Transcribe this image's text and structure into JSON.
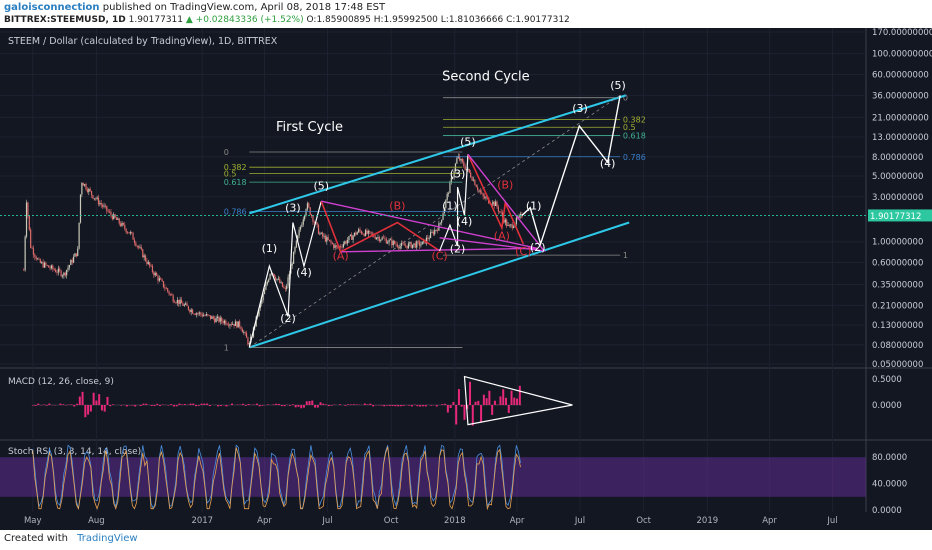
{
  "header": {
    "username": "galoisconnection",
    "published_text": "published on TradingView.com, April 08, 2018 17:48 EST",
    "symbol": "BITTREX:STEEMUSD, 1D",
    "last_price": "1.90177311",
    "change_text": "▲ +0.02843336 (+1.52%)",
    "ohlc_text": "O:1.85900895 H:1.95992500 L:1.81036666 C:1.90177312"
  },
  "chart_data": [
    {
      "type": "candlestick",
      "title": "STEEM / Dollar (calculated by TradingView), 1D, BITTREX",
      "y_scale": "log",
      "ylim": [
        0.05,
        170
      ],
      "x_ticks": [
        "May",
        "Aug",
        "2017",
        "Apr",
        "Jul",
        "Oct",
        "2018",
        "Apr",
        "Jul",
        "Oct",
        "2019",
        "Apr",
        "Jul"
      ],
      "y_ticks": [
        "170.00000000",
        "100.00000000",
        "60.00000000",
        "36.00000000",
        "21.00000000",
        "13.00000000",
        "8.00000000",
        "5.00000000",
        "3.00000000",
        "1.90177312",
        "1.00000000",
        "0.60000000",
        "0.35000000",
        "0.21000000",
        "0.13000000",
        "0.08000000",
        "0.05000000"
      ],
      "current_price_label": "1.90177312",
      "price_path": [
        [
          "2016-04-18",
          0.5
        ],
        [
          "2016-04-22",
          2.8
        ],
        [
          "2016-04-28",
          0.9
        ],
        [
          "2016-05-10",
          0.6
        ],
        [
          "2016-06-15",
          0.45
        ],
        [
          "2016-07-05",
          0.8
        ],
        [
          "2016-07-10",
          4.5
        ],
        [
          "2016-07-25",
          3.2
        ],
        [
          "2016-08-20",
          2.0
        ],
        [
          "2016-09-20",
          1.2
        ],
        [
          "2016-10-20",
          0.5
        ],
        [
          "2016-11-20",
          0.25
        ],
        [
          "2016-12-20",
          0.18
        ],
        [
          "2017-01-20",
          0.15
        ],
        [
          "2017-02-25",
          0.13
        ],
        [
          "2017-03-10",
          0.08
        ],
        [
          "2017-03-20",
          0.15
        ],
        [
          "2017-04-10",
          0.5
        ],
        [
          "2017-05-01",
          0.3
        ],
        [
          "2017-05-20",
          1.2
        ],
        [
          "2017-06-01",
          2.5
        ],
        [
          "2017-06-20",
          1.2
        ],
        [
          "2017-07-15",
          0.85
        ],
        [
          "2017-08-15",
          1.3
        ],
        [
          "2017-09-15",
          1.1
        ],
        [
          "2017-10-15",
          0.9
        ],
        [
          "2017-11-15",
          0.95
        ],
        [
          "2017-12-10",
          1.5
        ],
        [
          "2017-12-25",
          4.0
        ],
        [
          "2018-01-05",
          8.0
        ],
        [
          "2018-01-25",
          5.0
        ],
        [
          "2018-02-10",
          3.0
        ],
        [
          "2018-03-01",
          2.5
        ],
        [
          "2018-03-20",
          1.4
        ],
        [
          "2018-04-08",
          1.9
        ]
      ],
      "annotations": {
        "labels": [
          {
            "text": "First Cycle",
            "x": "2017-06-05",
            "y": 15
          },
          {
            "text": "Second Cycle",
            "x": "2018-02-15",
            "y": 52
          },
          {
            "text": "(1)",
            "x": "2017-04-08",
            "y": 0.78
          },
          {
            "text": "(2)",
            "x": "2017-05-05",
            "y": 0.14
          },
          {
            "text": "(3)",
            "x": "2017-05-12",
            "y": 2.1
          },
          {
            "text": "(4)",
            "x": "2017-05-28",
            "y": 0.43
          },
          {
            "text": "(5)",
            "x": "2017-06-22",
            "y": 3.6
          },
          {
            "text": "(A)",
            "x": "2017-07-20",
            "y": 0.65
          },
          {
            "text": "(B)",
            "x": "2017-10-10",
            "y": 2.2
          },
          {
            "text": "(C)",
            "x": "2017-12-10",
            "y": 0.65
          },
          {
            "text": "(1)",
            "x": "2017-12-25",
            "y": 2.2
          },
          {
            "text": "(2)",
            "x": "2018-01-05",
            "y": 0.77
          },
          {
            "text": "(3)",
            "x": "2018-01-05",
            "y": 4.8
          },
          {
            "text": "(4)",
            "x": "2018-01-15",
            "y": 1.5
          },
          {
            "text": "(5)",
            "x": "2018-01-20",
            "y": 10.5
          },
          {
            "text": "(A)",
            "x": "2018-03-10",
            "y": 1.05
          },
          {
            "text": "(B)",
            "x": "2018-03-15",
            "y": 3.7
          },
          {
            "text": "(C)",
            "x": "2018-04-10",
            "y": 0.72
          },
          {
            "text": "(1)",
            "x": "2018-04-25",
            "y": 2.2
          },
          {
            "text": "(2)",
            "x": "2018-05-01",
            "y": 0.8
          },
          {
            "text": "(3)",
            "x": "2018-07-01",
            "y": 24
          },
          {
            "text": "(4)",
            "x": "2018-08-10",
            "y": 6.2
          },
          {
            "text": "(5)",
            "x": "2018-08-25",
            "y": 42
          }
        ],
        "fib_levels_1": [
          {
            "label": "0",
            "price": 9
          },
          {
            "label": "0.382",
            "price": 6.2
          },
          {
            "label": "0.5",
            "price": 5.3
          },
          {
            "label": "0.618",
            "price": 4.3
          },
          {
            "label": "0.786",
            "price": 2.1
          },
          {
            "label": "1",
            "price": 0.075
          }
        ],
        "fib_levels_2": [
          {
            "label": "0",
            "price": 34
          },
          {
            "label": "0.382",
            "price": 20
          },
          {
            "label": "0.5",
            "price": 16.5
          },
          {
            "label": "0.618",
            "price": 13.5
          },
          {
            "label": "0.786",
            "price": 8
          },
          {
            "label": "1",
            "price": 0.72
          }
        ],
        "projected_path": [
          [
            "2018-04-08",
            1.9
          ],
          [
            "2018-04-20",
            2.3
          ],
          [
            "2018-05-05",
            0.95
          ],
          [
            "2018-06-30",
            17
          ],
          [
            "2018-08-10",
            7
          ],
          [
            "2018-08-28",
            36
          ]
        ],
        "channel_upper": [
          [
            "2017-03-10",
            2.0
          ],
          [
            "2018-09-05",
            36
          ]
        ],
        "channel_lower": [
          [
            "2017-03-10",
            0.075
          ],
          [
            "2018-09-10",
            1.6
          ]
        ]
      }
    },
    {
      "type": "line",
      "title": "MACD (12, 26, close, 9)",
      "y_ticks": [
        "0.5000",
        "0.0000"
      ],
      "ylim": [
        -0.6,
        0.6
      ]
    },
    {
      "type": "line",
      "title": "Stoch RSI (3, 3, 14, 14, close)",
      "y_ticks": [
        "80.0000",
        "40.0000",
        "0.0000"
      ],
      "ylim": [
        0,
        100
      ],
      "bands": [
        20,
        80
      ]
    }
  ],
  "footer": {
    "created_with": "Created with",
    "brand": "TradingView"
  },
  "colors": {
    "background": "#131722",
    "channel": "#2ec8e8",
    "wave_red": "#e0303a",
    "triangle_magenta": "#d040d0",
    "fib_blue": "#3a7fc8",
    "fib_green": "#40b090",
    "fib_olive": "#a0b030",
    "fib_grey": "#888888",
    "stoch_band": "#5a2a8a",
    "macd_hist": "#e8287a"
  }
}
